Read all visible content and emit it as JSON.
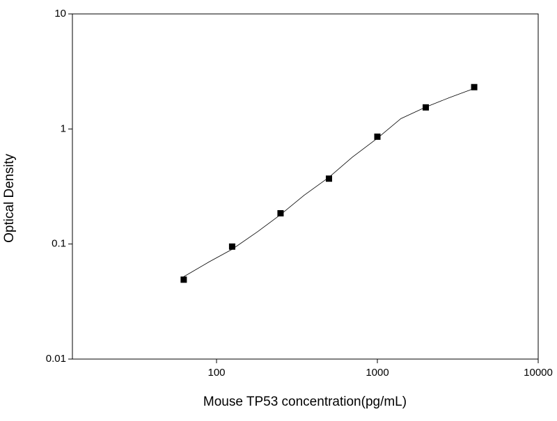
{
  "chart_data": {
    "type": "scatter",
    "x_label": "Mouse TP53 concentration(pg/mL)",
    "y_label": "Optical Density",
    "xlog": true,
    "ylog": true,
    "xlim": [
      12.7,
      10000
    ],
    "ylim": [
      0.01,
      10
    ],
    "xticks": [
      100,
      1000,
      10000
    ],
    "yticks": [
      0.01,
      0.1,
      1,
      10
    ],
    "series": [
      {
        "kind": "points",
        "color": "#000000",
        "x": [
          62.5,
          125,
          250,
          500,
          1000,
          2000,
          4000
        ],
        "values": [
          0.049,
          0.095,
          0.185,
          0.37,
          0.857,
          1.54,
          2.31
        ]
      },
      {
        "kind": "curve",
        "color": "#000000",
        "x": [
          62.5,
          90,
          125,
          180,
          250,
          350,
          500,
          700,
          1000,
          1400,
          2000,
          2800,
          4000
        ],
        "values": [
          0.052,
          0.07,
          0.09,
          0.128,
          0.18,
          0.265,
          0.38,
          0.57,
          0.83,
          1.23,
          1.55,
          1.87,
          2.25
        ]
      }
    ]
  }
}
